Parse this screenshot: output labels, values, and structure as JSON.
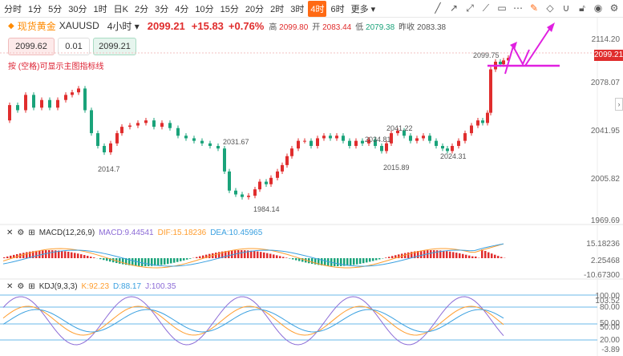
{
  "toolbar": {
    "timeframes": [
      "分时",
      "1分",
      "5分",
      "30分",
      "1时",
      "日K",
      "2分",
      "3分",
      "4分",
      "10分",
      "15分",
      "20分",
      "2时",
      "3时",
      "4时",
      "6时",
      "更多"
    ],
    "active_timeframe": "4时",
    "tools": [
      "trendline-icon",
      "arrow-icon",
      "ray-icon",
      "ray-diagonal-icon",
      "rectangle-icon",
      "ellipsis-icon",
      "edit-active-icon",
      "eraser-icon",
      "magnet-icon",
      "lock-icon",
      "eye-icon",
      "settings-icon"
    ]
  },
  "symbol": {
    "badge": "◆",
    "name": "现货黄金",
    "code": "XAUUSD",
    "period": "4小时",
    "price": "2099.21",
    "change": "+15.83",
    "change_pct": "+0.76%",
    "open_label": "高",
    "high_value": "2099.80",
    "o_label": "开",
    "o_value": "2083.44",
    "low_label": "低",
    "low_value": "2079.38",
    "prev_label": "昨收",
    "prev_value": "2083.38"
  },
  "trade": {
    "bid": "2099.62",
    "qty": "0.01",
    "ask": "2099.21"
  },
  "hint": "按 (空格)可显示主图指标线",
  "price_axis": [
    "2114.20",
    "2078.07",
    "2041.95",
    "2005.82",
    "1969.69"
  ],
  "current_price_tag": "2099.21",
  "annotations": [
    "2099.75",
    "2031.67",
    "2014.7",
    "1984.14",
    "2041.22",
    "2034.81",
    "2015.89",
    "2024.31"
  ],
  "macd": {
    "label": "MACD(12,26,9)",
    "macd": "MACD:9.44541",
    "dif": "DIF:15.18236",
    "dea": "DEA:10.45965",
    "axis": [
      "15.18236",
      "2.25468",
      "-10.67300"
    ],
    "colors": {
      "macd": "#8c6bd6",
      "dif": "#ff9d2e",
      "dea": "#3aa0e0"
    }
  },
  "kdj": {
    "label": "KDJ(9,3,3)",
    "k": "K:92.23",
    "d": "D:88.17",
    "j": "J:100.35",
    "axis": [
      "100.00",
      "103.52",
      "80.00",
      "50.00",
      "50.00",
      "20.00",
      "-3.89"
    ],
    "colors": {
      "k": "#ff9d2e",
      "d": "#3aa0e0",
      "j": "#8c6bd6"
    }
  },
  "colors": {
    "up": "#e02d2d",
    "down": "#1aa37a",
    "accent": "#ff6a14",
    "magenta": "#e020e0"
  }
}
